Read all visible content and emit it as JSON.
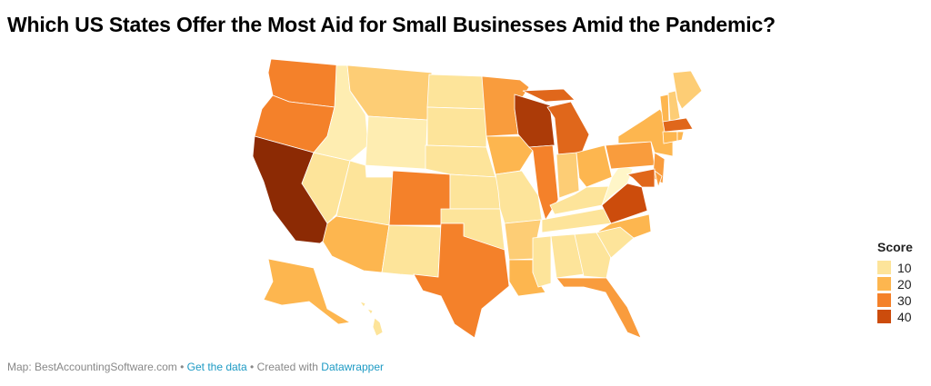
{
  "title": "Which US States Offer the Most Aid for Small Businesses Amid the Pandemic?",
  "legend": {
    "title": "Score",
    "items": [
      {
        "label": "10",
        "color": "#fde49a"
      },
      {
        "label": "20",
        "color": "#fdb64f"
      },
      {
        "label": "30",
        "color": "#f4812a"
      },
      {
        "label": "40",
        "color": "#cc4c0c"
      }
    ]
  },
  "color_scale": {
    "low": "#fff6c8",
    "high": "#8c2a04",
    "extreme_color": "#8c2a04"
  },
  "states": {
    "WA": 30,
    "OR": 30,
    "CA": 50,
    "ID": 5,
    "NV": 10,
    "MT": 15,
    "WY": 5,
    "UT": 10,
    "AZ": 20,
    "CO": 30,
    "NM": 10,
    "ND": 10,
    "SD": 10,
    "NE": 10,
    "KS": 10,
    "OK": 10,
    "TX": 30,
    "MN": 25,
    "IA": 20,
    "MO": 10,
    "AR": 15,
    "LA": 20,
    "WI": 45,
    "IL": 30,
    "MI": 35,
    "IN": 15,
    "OH": 20,
    "KY": 10,
    "TN": 10,
    "MS": 10,
    "AL": 10,
    "GA": 10,
    "FL": 25,
    "SC": 10,
    "NC": 20,
    "VA": 40,
    "WV": 0,
    "PA": 25,
    "NY": 20,
    "ME": 15,
    "VT": 20,
    "NH": 15,
    "MA": 35,
    "CT": 20,
    "RI": 20,
    "NJ": 25,
    "DE": 25,
    "MD": 35,
    "AK": 20,
    "HI": 10
  },
  "footer": {
    "source": "Map: BestAccountingSoftware.com",
    "sep": " • ",
    "get_data": "Get the data",
    "created": "Created with",
    "tool": "Datawrapper"
  }
}
